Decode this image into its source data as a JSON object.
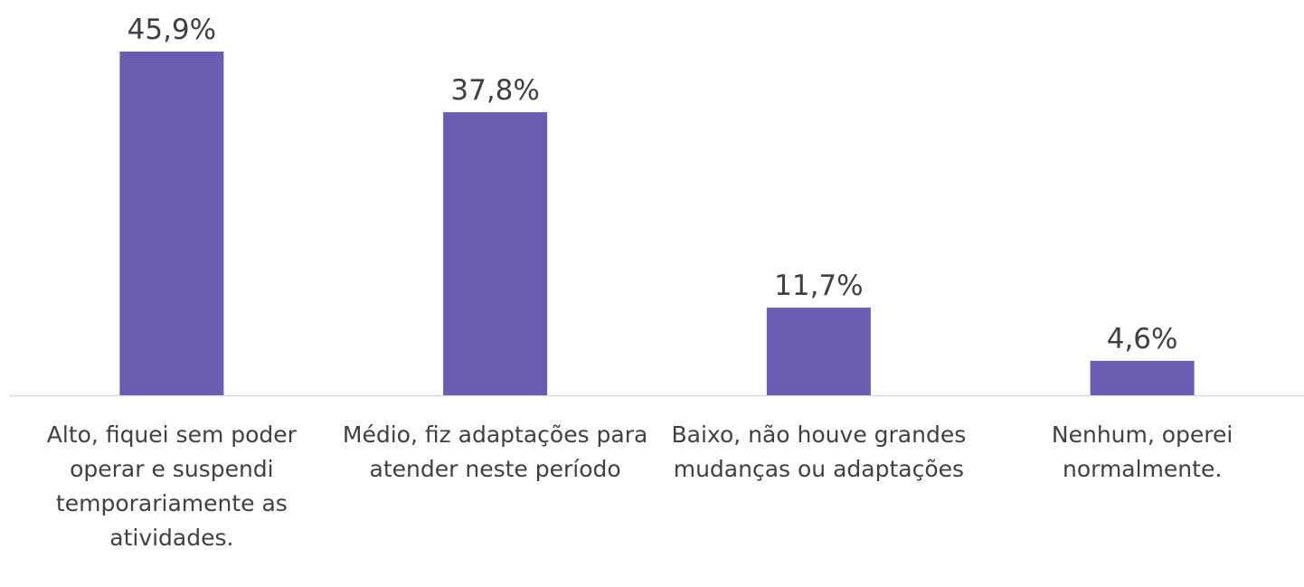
{
  "chart_data": {
    "type": "bar",
    "categories": [
      "Alto, fiquei sem poder operar e suspendi temporariamente as atividades.",
      "Médio, fiz adaptações para atender neste período",
      "Baixo, não houve grandes mudanças ou adaptações",
      "Nenhum, operei normalmente."
    ],
    "values": [
      45.9,
      37.8,
      11.7,
      4.6
    ],
    "value_labels": [
      "45,9%",
      "37,8%",
      "11,7%",
      "4,6%"
    ],
    "color": "#6a5bb3"
  }
}
